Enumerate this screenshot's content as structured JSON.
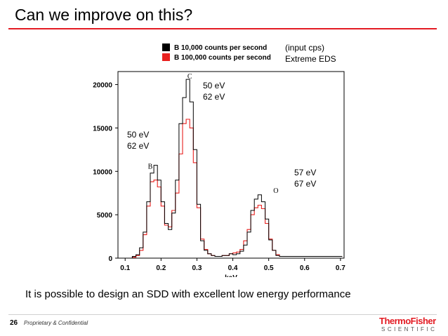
{
  "slide": {
    "title": "Can we improve on this?",
    "caption": "It is possible to design an SDD with excellent low energy performance",
    "page_number": "26",
    "footer_note": "Proprietary & Confidential",
    "logo_top": "ThermoFisher",
    "logo_bottom": "SCIENTIFIC"
  },
  "annotations": {
    "input_cps": "(input cps)",
    "extreme_eds": "Extreme EDS",
    "c_res_1": "50 eV",
    "c_res_2": "62 eV",
    "b_res_1": "50 eV",
    "b_res_2": "62 eV",
    "o_res_1": "57 eV",
    "o_res_2": "67 eV"
  },
  "colors": {
    "accent": "#e31b23",
    "series_black": "#000000",
    "series_red": "#e8201e"
  },
  "chart_data": {
    "type": "line",
    "step": true,
    "xlabel": "keV",
    "ylabel": "",
    "xlim": [
      0.08,
      0.71
    ],
    "ylim": [
      0,
      21500
    ],
    "x_ticks": [
      0.1,
      0.2,
      0.3,
      0.4,
      0.5,
      0.6,
      0.7
    ],
    "x_tick_labels": [
      "0.1",
      "0.2",
      "0.3",
      "0.4",
      "0.5",
      "0.6",
      "0.7"
    ],
    "y_ticks": [
      0,
      5000,
      10000,
      15000,
      20000
    ],
    "y_tick_labels": [
      "0",
      "5000",
      "10000",
      "15000",
      "20000"
    ],
    "peak_labels": [
      {
        "text": "B",
        "x": 0.17,
        "y": 10300
      },
      {
        "text": "C",
        "x": 0.28,
        "y": 20700
      },
      {
        "text": "O",
        "x": 0.52,
        "y": 7500
      }
    ],
    "legend_position": "top",
    "bin_width": 0.01,
    "bin_starts": [
      0.12,
      0.13,
      0.14,
      0.15,
      0.16,
      0.17,
      0.18,
      0.19,
      0.2,
      0.21,
      0.22,
      0.23,
      0.24,
      0.25,
      0.26,
      0.27,
      0.28,
      0.29,
      0.3,
      0.31,
      0.32,
      0.33,
      0.34,
      0.35,
      0.36,
      0.37,
      0.38,
      0.39,
      0.4,
      0.41,
      0.42,
      0.43,
      0.44,
      0.45,
      0.46,
      0.47,
      0.48,
      0.49,
      0.5,
      0.51,
      0.52,
      0.53,
      0.54,
      0.55,
      0.56,
      0.57,
      0.58,
      0.59,
      0.6
    ],
    "series": [
      {
        "name": "B 10,000 counts per second",
        "color": "#000000",
        "values": [
          200,
          400,
          1200,
          3000,
          6500,
          9800,
          10700,
          9000,
          6500,
          4000,
          3300,
          5200,
          9000,
          15500,
          18500,
          20600,
          18000,
          12500,
          6200,
          2000,
          900,
          500,
          300,
          200,
          200,
          300,
          300,
          500,
          400,
          500,
          800,
          1500,
          3000,
          5500,
          6800,
          7300,
          6500,
          4500,
          2100,
          900,
          300,
          200,
          200,
          200,
          200,
          200,
          200,
          200,
          200
        ]
      },
      {
        "name": "B 100,000 counts per second",
        "color": "#e8201e",
        "values": [
          100,
          300,
          900,
          2700,
          6000,
          8800,
          9000,
          8200,
          6000,
          3800,
          3600,
          5500,
          7500,
          12000,
          15500,
          16000,
          15000,
          11000,
          5800,
          2200,
          1000,
          500,
          300,
          200,
          200,
          300,
          300,
          500,
          600,
          700,
          1000,
          2000,
          3300,
          5000,
          5800,
          6100,
          5700,
          4000,
          2200,
          900,
          400,
          200,
          200,
          200,
          200,
          200,
          200,
          200,
          200
        ]
      }
    ]
  }
}
